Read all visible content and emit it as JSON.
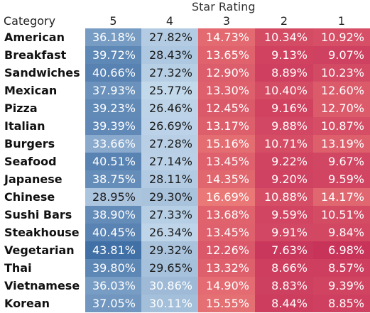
{
  "chart_data": {
    "type": "heatmap",
    "header_title": "Star Rating",
    "row_header": "Category",
    "columns": [
      "5",
      "4",
      "3",
      "2",
      "1"
    ],
    "rows": [
      {
        "category": "American",
        "values": [
          "36.18%",
          "27.82%",
          "14.73%",
          "10.34%",
          "10.92%"
        ],
        "nums": [
          36.18,
          27.82,
          14.73,
          10.34,
          10.92
        ]
      },
      {
        "category": "Breakfast",
        "values": [
          "39.72%",
          "28.43%",
          "13.65%",
          "9.13%",
          "9.07%"
        ],
        "nums": [
          39.72,
          28.43,
          13.65,
          9.13,
          9.07
        ]
      },
      {
        "category": "Sandwiches",
        "values": [
          "40.66%",
          "27.32%",
          "12.90%",
          "8.89%",
          "10.23%"
        ],
        "nums": [
          40.66,
          27.32,
          12.9,
          8.89,
          10.23
        ]
      },
      {
        "category": "Mexican",
        "values": [
          "37.93%",
          "25.77%",
          "13.30%",
          "10.40%",
          "12.60%"
        ],
        "nums": [
          37.93,
          25.77,
          13.3,
          10.4,
          12.6
        ]
      },
      {
        "category": "Pizza",
        "values": [
          "39.23%",
          "26.46%",
          "12.45%",
          "9.16%",
          "12.70%"
        ],
        "nums": [
          39.23,
          26.46,
          12.45,
          9.16,
          12.7
        ]
      },
      {
        "category": "Italian",
        "values": [
          "39.39%",
          "26.69%",
          "13.17%",
          "9.88%",
          "10.87%"
        ],
        "nums": [
          39.39,
          26.69,
          13.17,
          9.88,
          10.87
        ]
      },
      {
        "category": "Burgers",
        "values": [
          "33.66%",
          "27.28%",
          "15.16%",
          "10.71%",
          "13.19%"
        ],
        "nums": [
          33.66,
          27.28,
          15.16,
          10.71,
          13.19
        ]
      },
      {
        "category": "Seafood",
        "values": [
          "40.51%",
          "27.14%",
          "13.45%",
          "9.22%",
          "9.67%"
        ],
        "nums": [
          40.51,
          27.14,
          13.45,
          9.22,
          9.67
        ]
      },
      {
        "category": "Japanese",
        "values": [
          "38.75%",
          "28.11%",
          "14.35%",
          "9.20%",
          "9.59%"
        ],
        "nums": [
          38.75,
          28.11,
          14.35,
          9.2,
          9.59
        ]
      },
      {
        "category": "Chinese",
        "values": [
          "28.95%",
          "29.30%",
          "16.69%",
          "10.88%",
          "14.17%"
        ],
        "nums": [
          28.95,
          29.3,
          16.69,
          10.88,
          14.17
        ]
      },
      {
        "category": "Sushi Bars",
        "values": [
          "38.90%",
          "27.33%",
          "13.68%",
          "9.59%",
          "10.51%"
        ],
        "nums": [
          38.9,
          27.33,
          13.68,
          9.59,
          10.51
        ]
      },
      {
        "category": "Steakhouse",
        "values": [
          "40.45%",
          "26.34%",
          "13.45%",
          "9.91%",
          "9.84%"
        ],
        "nums": [
          40.45,
          26.34,
          13.45,
          9.91,
          9.84
        ]
      },
      {
        "category": "Vegetarian",
        "values": [
          "43.81%",
          "29.32%",
          "12.26%",
          "7.63%",
          "6.98%"
        ],
        "nums": [
          43.81,
          29.32,
          12.26,
          7.63,
          6.98
        ]
      },
      {
        "category": "Thai",
        "values": [
          "39.80%",
          "29.65%",
          "13.32%",
          "8.66%",
          "8.57%"
        ],
        "nums": [
          39.8,
          29.65,
          13.32,
          8.66,
          8.57
        ]
      },
      {
        "category": "Vietnamese",
        "values": [
          "36.03%",
          "30.86%",
          "14.90%",
          "8.83%",
          "9.39%"
        ],
        "nums": [
          36.03,
          30.86,
          14.9,
          8.83,
          9.39
        ]
      },
      {
        "category": "Korean",
        "values": [
          "37.05%",
          "30.11%",
          "15.55%",
          "8.44%",
          "8.85%"
        ],
        "nums": [
          37.05,
          30.11,
          15.55,
          8.44,
          8.85
        ]
      }
    ],
    "color_scale": {
      "diverging_center": 20,
      "high_dark": "#3f6fa5",
      "high_light": "#c8dcee",
      "low_light": "#ea7a77",
      "low_dark": "#c8325a"
    }
  }
}
